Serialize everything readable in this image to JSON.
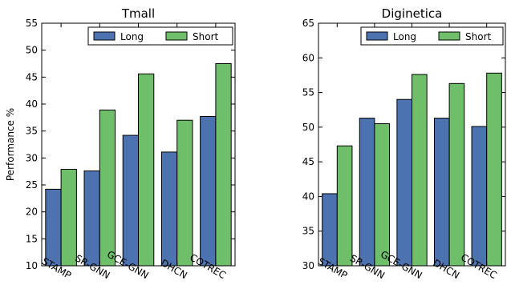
{
  "chart_data": [
    {
      "type": "bar",
      "title": "Tmall",
      "xlabel": "",
      "ylabel": "Performance %",
      "ylim": [
        10,
        55
      ],
      "yticks": [
        "10",
        "15",
        "20",
        "25",
        "30",
        "35",
        "40",
        "45",
        "50",
        "55"
      ],
      "categories": [
        "STAMP",
        "SR-GNN",
        "GCE-GNN",
        "DHCN",
        "COTREC"
      ],
      "series": [
        {
          "name": "Long",
          "color": "#4c72b0",
          "values": [
            24.2,
            27.6,
            34.2,
            31.1,
            37.7
          ]
        },
        {
          "name": "Short",
          "color": "#6fbe6a",
          "values": [
            27.9,
            38.9,
            45.6,
            37.0,
            47.5
          ]
        }
      ],
      "legend": "top-right",
      "grid": false
    },
    {
      "type": "bar",
      "title": "Diginetica",
      "xlabel": "",
      "ylabel": "",
      "ylim": [
        30,
        65
      ],
      "yticks": [
        "30",
        "35",
        "40",
        "45",
        "50",
        "55",
        "60",
        "65"
      ],
      "categories": [
        "STAMP",
        "SR-GNN",
        "GCE-GNN",
        "DHCN",
        "COTREC"
      ],
      "series": [
        {
          "name": "Long",
          "color": "#4c72b0",
          "values": [
            40.4,
            51.3,
            54.0,
            51.3,
            50.1
          ]
        },
        {
          "name": "Short",
          "color": "#6fbe6a",
          "values": [
            47.3,
            50.5,
            57.6,
            56.3,
            57.8
          ]
        }
      ],
      "legend": "top-right",
      "grid": false
    }
  ]
}
